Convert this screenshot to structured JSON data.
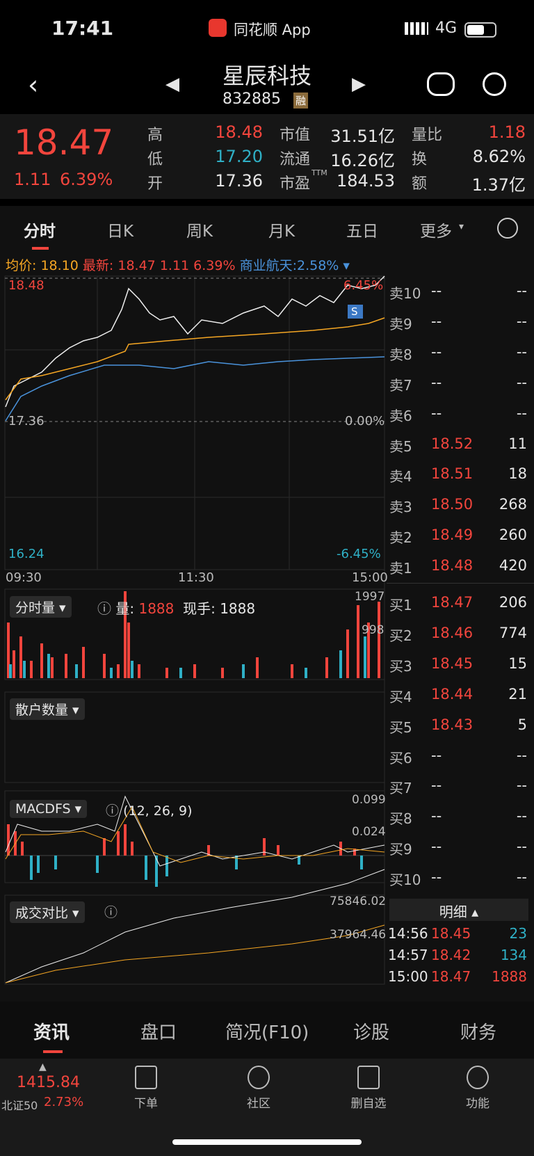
{
  "status": {
    "time": "17:41",
    "app": "同花顺 App",
    "network": "4G"
  },
  "header": {
    "name": "星辰科技",
    "code": "832885",
    "tag": "融"
  },
  "quote": {
    "price": "18.47",
    "change": "1.11",
    "pct": "6.39%",
    "stats": [
      {
        "label": "高",
        "value": "18.48"
      },
      {
        "label": "低",
        "value": "17.20"
      },
      {
        "label": "开",
        "value": "17.36"
      },
      {
        "label": "市值",
        "value": "31.51亿"
      },
      {
        "label": "流通",
        "value": "16.26亿"
      },
      {
        "label": "市盈",
        "sup": "TTM",
        "value": "184.53"
      },
      {
        "label": "量比",
        "value": "1.18"
      },
      {
        "label": "换",
        "value": "8.62%"
      },
      {
        "label": "额",
        "value": "1.37亿"
      }
    ]
  },
  "tabs": [
    "分时",
    "日K",
    "周K",
    "月K",
    "五日",
    "更多"
  ],
  "info": {
    "avg_label": "均价:",
    "avg": "18.10",
    "latest_label": "最新:",
    "latest": "18.47",
    "change": "1.11",
    "pct": "6.39%",
    "sector": "商业航天:",
    "sector_pct": "2.58%"
  },
  "chart": {
    "high": "18.48",
    "high_pct": "6.45%",
    "open": "17.36",
    "open_pct": "0.00%",
    "low": "16.24",
    "low_pct": "-6.45%",
    "times": [
      "09:30",
      "11:30",
      "15:00"
    ],
    "marker": "S"
  },
  "volume": {
    "title": "分时量",
    "vol_label": "量:",
    "vol": "1888",
    "hand": "现手: 1888",
    "max": "1997",
    "mid": "998"
  },
  "retail": {
    "title": "散户数量"
  },
  "macd": {
    "title": "MACDFS",
    "params": "(12, 26, 9)",
    "max": "0.099",
    "mid": "0.024"
  },
  "compare": {
    "title": "成交对比",
    "v1": "75846.02",
    "v2": "37964.46"
  },
  "orderbook": {
    "sells": [
      {
        "label": "卖10",
        "price": "--",
        "vol": "--"
      },
      {
        "label": "卖9",
        "price": "--",
        "vol": "--"
      },
      {
        "label": "卖8",
        "price": "--",
        "vol": "--"
      },
      {
        "label": "卖7",
        "price": "--",
        "vol": "--"
      },
      {
        "label": "卖6",
        "price": "--",
        "vol": "--"
      },
      {
        "label": "卖5",
        "price": "18.52",
        "vol": "11"
      },
      {
        "label": "卖4",
        "price": "18.51",
        "vol": "18"
      },
      {
        "label": "卖3",
        "price": "18.50",
        "vol": "268"
      },
      {
        "label": "卖2",
        "price": "18.49",
        "vol": "260"
      },
      {
        "label": "卖1",
        "price": "18.48",
        "vol": "420"
      }
    ],
    "buys": [
      {
        "label": "买1",
        "price": "18.47",
        "vol": "206"
      },
      {
        "label": "买2",
        "price": "18.46",
        "vol": "774"
      },
      {
        "label": "买3",
        "price": "18.45",
        "vol": "15"
      },
      {
        "label": "买4",
        "price": "18.44",
        "vol": "21"
      },
      {
        "label": "买5",
        "price": "18.43",
        "vol": "5"
      },
      {
        "label": "买6",
        "price": "--",
        "vol": "--"
      },
      {
        "label": "买7",
        "price": "--",
        "vol": "--"
      },
      {
        "label": "买8",
        "price": "--",
        "vol": "--"
      },
      {
        "label": "买9",
        "price": "--",
        "vol": "--"
      },
      {
        "label": "买10",
        "price": "--",
        "vol": "--"
      }
    ]
  },
  "detail": {
    "title": "明细",
    "trades": [
      {
        "time": "14:56",
        "price": "18.45",
        "vol": "23"
      },
      {
        "time": "14:57",
        "price": "18.42",
        "vol": "134"
      },
      {
        "time": "15:00",
        "price": "18.47",
        "vol": "1888"
      }
    ]
  },
  "bottom_tabs": [
    "资讯",
    "盘口",
    "简况(F10)",
    "诊股",
    "财务"
  ],
  "footer": {
    "index_value": "1415.84",
    "index_name": "北证50",
    "index_pct": "2.73%",
    "nav": [
      "下单",
      "社区",
      "删自选",
      "功能"
    ]
  }
}
